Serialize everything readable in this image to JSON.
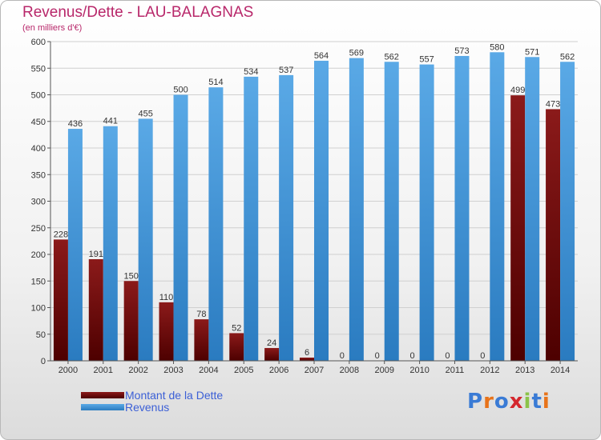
{
  "header": {
    "title": "Revenus/Dette - LAU-BALAGNAS",
    "subtitle": "(en milliers d'€)"
  },
  "logo": {
    "text": "Proxiti",
    "colors": [
      "#3a7bd5",
      "#e8731a",
      "#3a7bd5",
      "#d4272e",
      "#8bc34a",
      "#3a7bd5",
      "#e8731a"
    ]
  },
  "colors": {
    "dette": "#8b1a1a",
    "dette_dark": "#4d0000",
    "revenus": "#5aa9e6",
    "revenus_dark": "#2a7bc0",
    "axis_text": "#333333",
    "grid": "#d0d0d0"
  },
  "chart_data": {
    "type": "bar",
    "categories": [
      "2000",
      "2001",
      "2002",
      "2003",
      "2004",
      "2005",
      "2006",
      "2007",
      "2008",
      "2009",
      "2010",
      "2011",
      "2012",
      "2013",
      "2014"
    ],
    "series": [
      {
        "name": "Montant de la Dette",
        "values": [
          228,
          191,
          150,
          110,
          78,
          52,
          24,
          6,
          0,
          0,
          0,
          0,
          0,
          499,
          473
        ]
      },
      {
        "name": "Revenus",
        "values": [
          436,
          441,
          455,
          500,
          514,
          534,
          537,
          564,
          569,
          562,
          557,
          573,
          580,
          571,
          562
        ]
      }
    ],
    "ylim": [
      0,
      600
    ],
    "yticks": [
      0,
      50,
      100,
      150,
      200,
      250,
      300,
      350,
      400,
      450,
      500,
      550,
      600
    ],
    "grid": true,
    "legend_position": "bottom-left"
  }
}
